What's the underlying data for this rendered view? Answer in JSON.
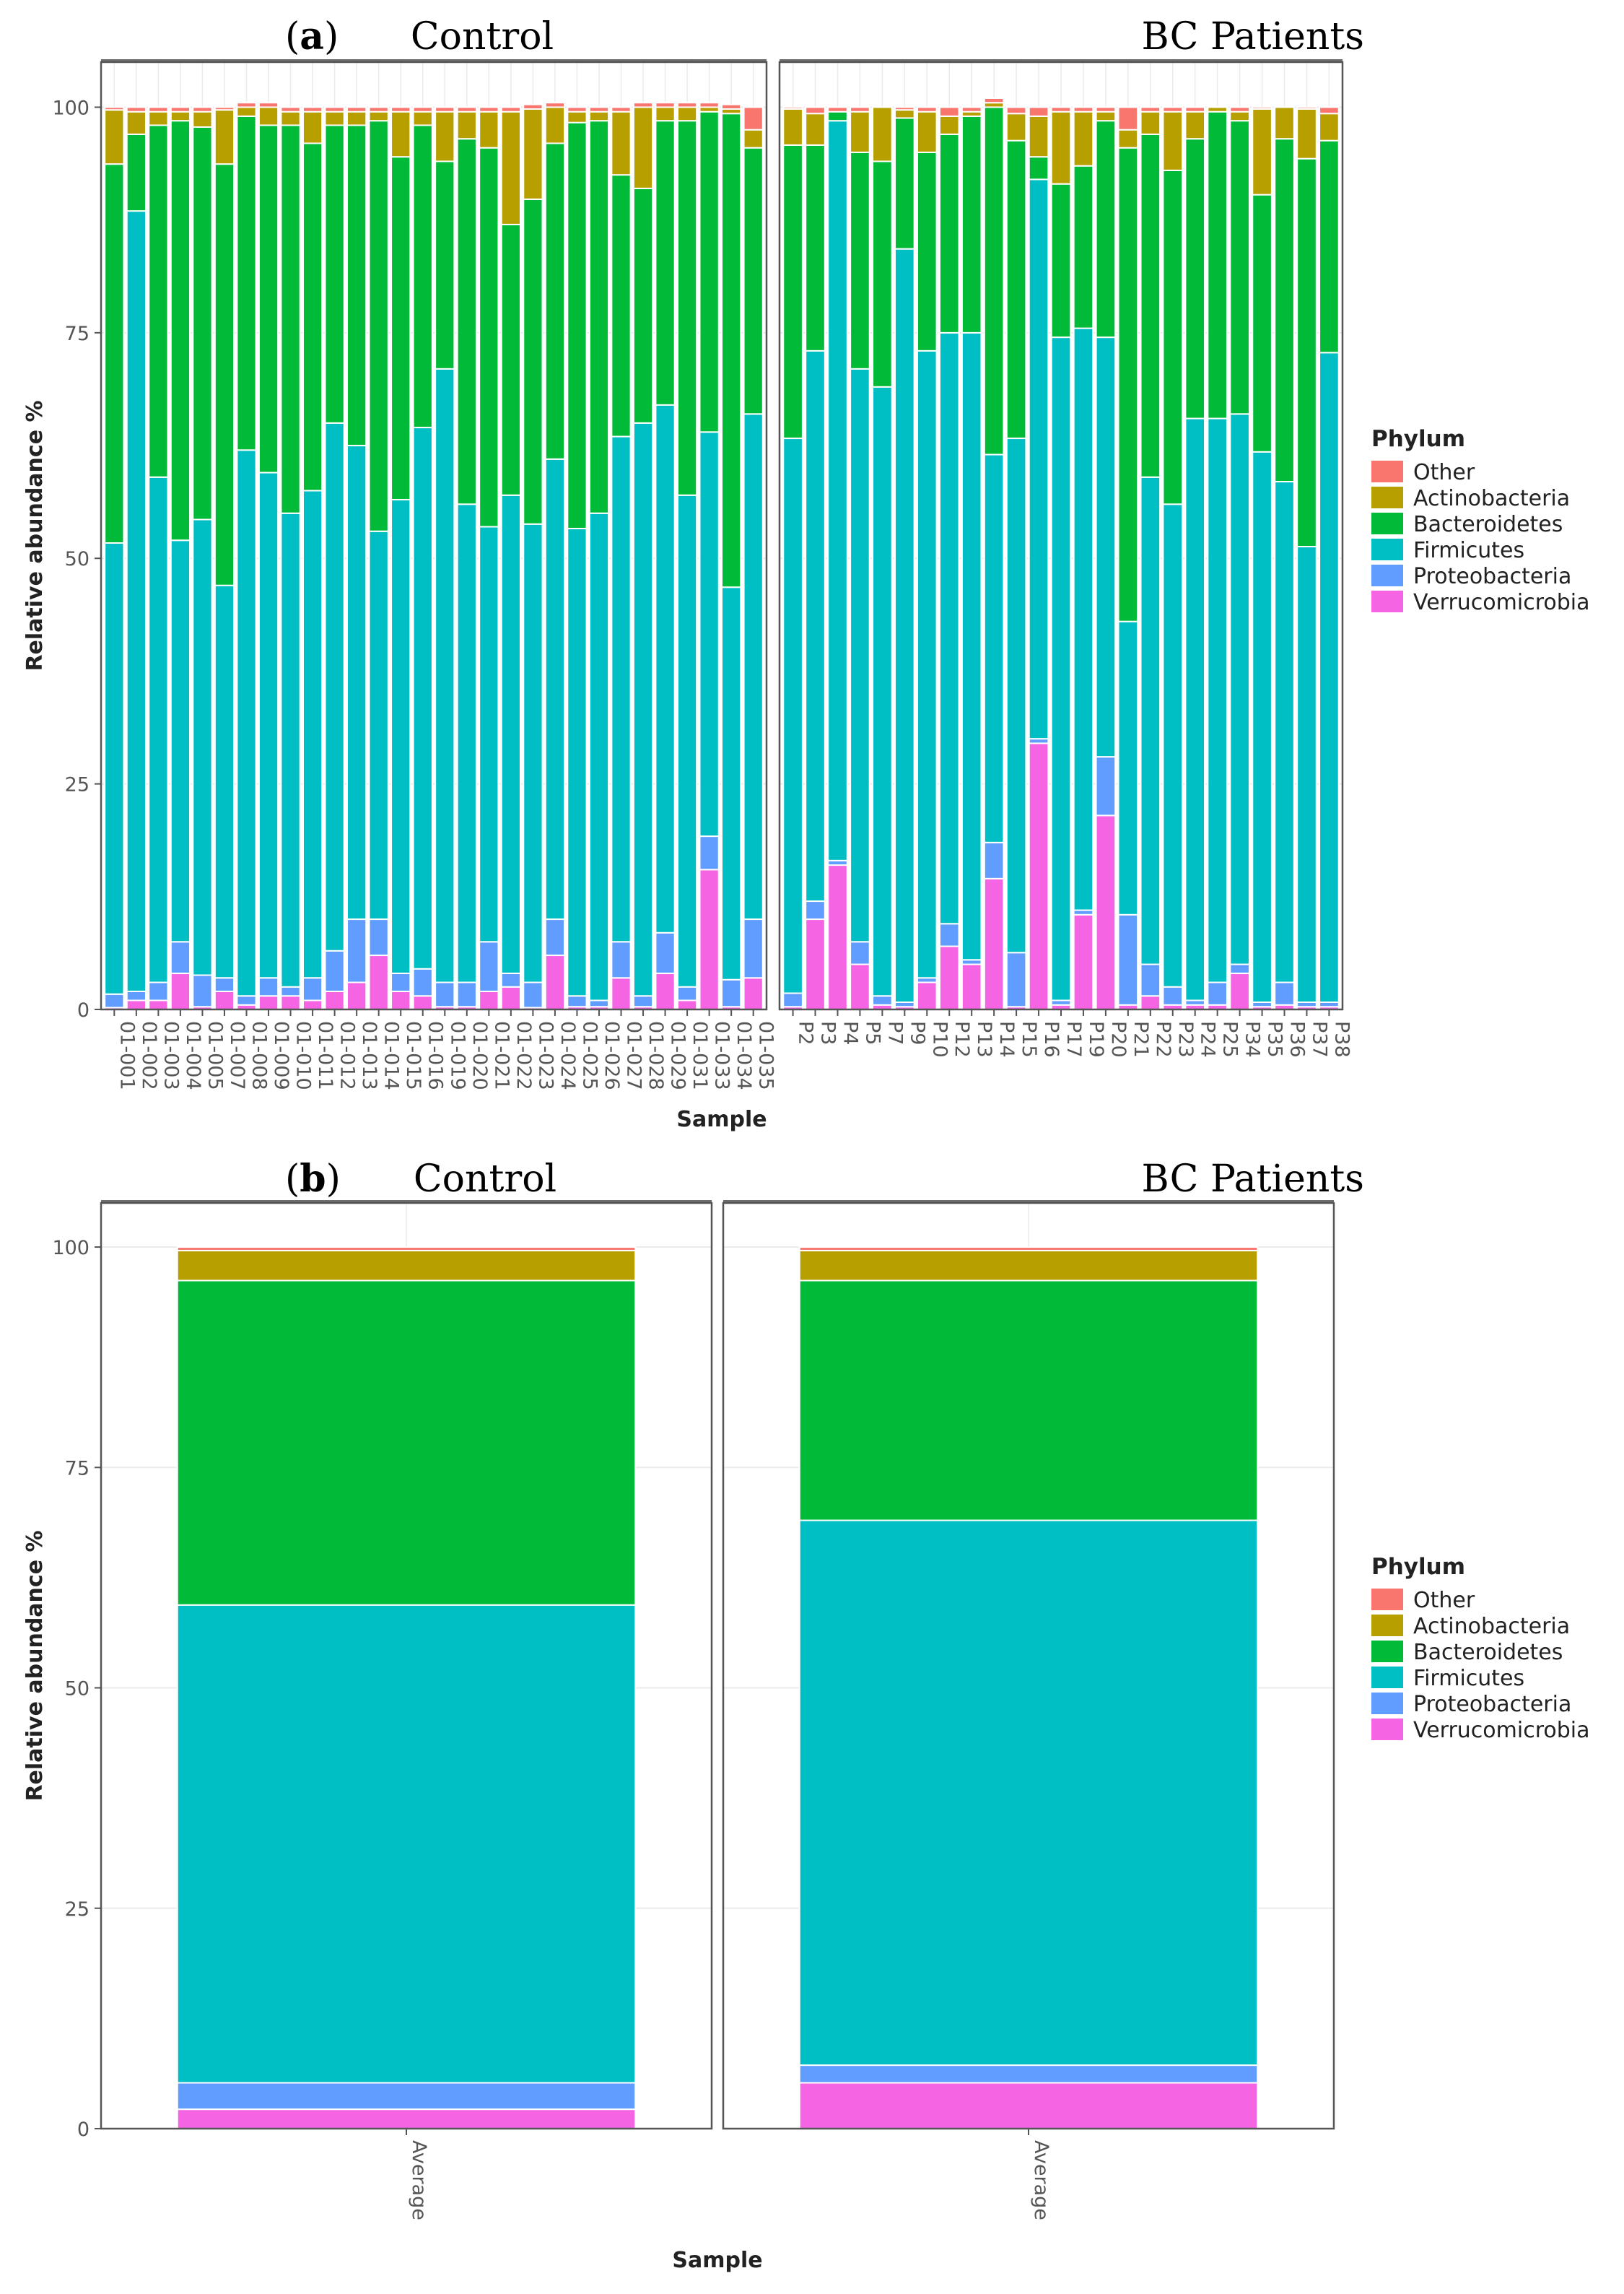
{
  "chart_data": [
    {
      "type": "bar",
      "stacked": true,
      "panel_label": "a",
      "xlabel": "Sample",
      "ylabel": "Relative abundance %",
      "ylim": [
        0,
        105
      ],
      "yticks": [
        0,
        25,
        50,
        75,
        100
      ],
      "grid": true,
      "legend_position": "right",
      "legend_title": "Phylum",
      "legend": [
        "Other",
        "Actinobacteria",
        "Bacteroidetes",
        "Firmicutes",
        "Proteobacteria",
        "Verrucomicrobia"
      ],
      "stack_order": [
        "Verrucomicrobia",
        "Proteobacteria",
        "Firmicutes",
        "Bacteroidetes",
        "Actinobacteria",
        "Other"
      ],
      "colors": {
        "Other": "#F8766D",
        "Actinobacteria": "#B79F00",
        "Bacteroidetes": "#00BA38",
        "Firmicutes": "#00BFC4",
        "Proteobacteria": "#619CFF",
        "Verrucomicrobia": "#F564E3"
      },
      "facets": [
        {
          "title": "Control",
          "categories": [
            "01-001",
            "01-002",
            "01-003",
            "01-004",
            "01-005",
            "01-007",
            "01-008",
            "01-009",
            "01-010",
            "01-011",
            "01-012",
            "01-013",
            "01-014",
            "01-015",
            "01-016",
            "01-019",
            "01-020",
            "01-021",
            "01-022",
            "01-023",
            "01-024",
            "01-025",
            "01-026",
            "01-027",
            "01-028",
            "01-029",
            "01-031",
            "01-033",
            "01-034",
            "01-035"
          ],
          "series": [
            {
              "name": "Verrucomicrobia",
              "values": [
                0.2,
                1,
                1,
                4,
                0.3,
                2,
                0.5,
                1.5,
                1.5,
                1,
                2,
                3,
                6,
                2,
                1.5,
                0.3,
                0.3,
                2,
                2.5,
                0.2,
                6,
                0.3,
                0.3,
                3.5,
                0.3,
                4,
                1,
                15.5,
                0.3,
                3.5
              ]
            },
            {
              "name": "Proteobacteria",
              "values": [
                1.5,
                1,
                2,
                3.5,
                3.5,
                1.5,
                1,
                2,
                1,
                2.5,
                4.5,
                7,
                4,
                2,
                3,
                2.7,
                2.7,
                5.5,
                1.5,
                2.8,
                4,
                1.2,
                0.7,
                4,
                1.2,
                4.5,
                1.5,
                3.7,
                3,
                6.5
              ]
            },
            {
              "name": "Firmicutes",
              "values": [
                50,
                86.5,
                56,
                44.5,
                50.5,
                43.5,
                60.5,
                56,
                52.5,
                54,
                58.5,
                52.5,
                43,
                52.5,
                60,
                68,
                53,
                46,
                53,
                50.8,
                51,
                51.8,
                54,
                56,
                63.5,
                58.5,
                54.5,
                44.8,
                43.5,
                56
              ]
            },
            {
              "name": "Bacteroidetes",
              "values": [
                42,
                8.5,
                39,
                46.5,
                43.5,
                46.7,
                37,
                38.5,
                43,
                38.5,
                33,
                35.5,
                45.5,
                38,
                33.5,
                23,
                40.5,
                42,
                30,
                36,
                35,
                45,
                43.5,
                29,
                26,
                31.5,
                41.5,
                35.5,
                52.5,
                29.5
              ]
            },
            {
              "name": "Actinobacteria",
              "values": [
                6,
                2.5,
                1.5,
                1,
                1.7,
                6,
                1,
                2,
                1.5,
                3.5,
                1.5,
                1.5,
                1,
                5,
                1.5,
                5.5,
                3,
                4,
                12.5,
                10,
                4,
                1.2,
                1,
                7,
                9,
                1.5,
                1.5,
                0.5,
                0.5,
                2
              ]
            },
            {
              "name": "Other",
              "values": [
                0.3,
                0.5,
                0.5,
                0.5,
                0.5,
                0.3,
                0.5,
                0.5,
                0.5,
                0.5,
                0.5,
                0.5,
                0.5,
                0.5,
                0.5,
                0.5,
                0.5,
                0.5,
                0.5,
                0.5,
                0.5,
                0.5,
                0.5,
                0.5,
                0.5,
                0.5,
                0.5,
                0.5,
                0.5,
                2.5
              ]
            }
          ]
        },
        {
          "title": "BC Patients",
          "categories": [
            "P2",
            "P3",
            "P4",
            "P5",
            "P7",
            "P9",
            "P10",
            "P12",
            "P13",
            "P14",
            "P15",
            "P16",
            "P17",
            "P19",
            "P20",
            "P21",
            "P22",
            "P23",
            "P24",
            "P25",
            "P34",
            "P35",
            "P36",
            "P37",
            "P38"
          ],
          "series": [
            {
              "name": "Verrucomicrobia",
              "values": [
                0.3,
                10,
                16,
                5,
                0.5,
                0.3,
                3,
                7,
                5,
                14.5,
                0.3,
                29.5,
                0.5,
                10.5,
                21.5,
                0.5,
                1.5,
                0.5,
                0.5,
                0.5,
                4,
                0.3,
                0.5,
                0.3,
                0.3
              ]
            },
            {
              "name": "Proteobacteria",
              "values": [
                1.5,
                2,
                0.5,
                2.5,
                1,
                0.5,
                0.5,
                2.5,
                0.5,
                4,
                6,
                0.5,
                0.5,
                0.5,
                6.5,
                10,
                3.5,
                2,
                0.5,
                2.5,
                1,
                0.5,
                2.5,
                0.5,
                0.5
              ]
            },
            {
              "name": "Firmicutes",
              "values": [
                61.5,
                61,
                82,
                63.5,
                67.5,
                83.5,
                69.5,
                65.5,
                69.5,
                43,
                57,
                62,
                73.5,
                64.5,
                46.5,
                32.5,
                54,
                53.5,
                64.5,
                62.5,
                61,
                61,
                55.5,
                50.5,
                72
              ]
            },
            {
              "name": "Bacteroidetes",
              "values": [
                32.5,
                22.8,
                1,
                24,
                25,
                14.5,
                22,
                22,
                24,
                38.5,
                33,
                2.5,
                17,
                18,
                24,
                52.5,
                38,
                37,
                31,
                34,
                32.5,
                28.5,
                38,
                43,
                23.5
              ]
            },
            {
              "name": "Actinobacteria",
              "values": [
                4,
                3.5,
                0,
                4.5,
                6,
                0.9,
                4.5,
                2,
                0.5,
                0.5,
                3,
                4.5,
                8,
                6,
                1,
                2,
                2.5,
                6.5,
                3,
                0.5,
                1,
                9.5,
                3.5,
                5.5,
                3
              ]
            },
            {
              "name": "Other",
              "values": [
                0.2,
                0.7,
                0.5,
                0.5,
                0,
                0.3,
                0.5,
                1,
                0.5,
                0.5,
                0.7,
                1,
                0.5,
                0.5,
                0.5,
                2.5,
                0.5,
                0.5,
                0.5,
                0,
                0.5,
                0.2,
                0,
                0.2,
                0.7
              ]
            }
          ]
        }
      ]
    },
    {
      "type": "bar",
      "stacked": true,
      "panel_label": "b",
      "xlabel": "Sample",
      "ylabel": "Relative abundance %",
      "ylim": [
        0,
        105
      ],
      "yticks": [
        0,
        25,
        50,
        75,
        100
      ],
      "grid": true,
      "legend_position": "right",
      "legend_title": "Phylum",
      "legend": [
        "Other",
        "Actinobacteria",
        "Bacteroidetes",
        "Firmicutes",
        "Proteobacteria",
        "Verrucomicrobia"
      ],
      "stack_order": [
        "Verrucomicrobia",
        "Proteobacteria",
        "Firmicutes",
        "Bacteroidetes",
        "Actinobacteria",
        "Other"
      ],
      "colors": {
        "Other": "#F8766D",
        "Actinobacteria": "#B79F00",
        "Bacteroidetes": "#00BA38",
        "Firmicutes": "#00BFC4",
        "Proteobacteria": "#619CFF",
        "Verrucomicrobia": "#F564E3"
      },
      "facets": [
        {
          "title": "Control",
          "categories": [
            "Average"
          ],
          "series": [
            {
              "name": "Verrucomicrobia",
              "values": [
                2.2
              ]
            },
            {
              "name": "Proteobacteria",
              "values": [
                3
              ]
            },
            {
              "name": "Firmicutes",
              "values": [
                54.2
              ]
            },
            {
              "name": "Bacteroidetes",
              "values": [
                36.8
              ]
            },
            {
              "name": "Actinobacteria",
              "values": [
                3.4
              ]
            },
            {
              "name": "Other",
              "values": [
                0.4
              ]
            }
          ]
        },
        {
          "title": "BC Patients",
          "categories": [
            "Average"
          ],
          "series": [
            {
              "name": "Verrucomicrobia",
              "values": [
                5.2
              ]
            },
            {
              "name": "Proteobacteria",
              "values": [
                2
              ]
            },
            {
              "name": "Firmicutes",
              "values": [
                61.8
              ]
            },
            {
              "name": "Bacteroidetes",
              "values": [
                27.2
              ]
            },
            {
              "name": "Actinobacteria",
              "values": [
                3.4
              ]
            },
            {
              "name": "Other",
              "values": [
                0.4
              ]
            }
          ]
        }
      ]
    }
  ]
}
